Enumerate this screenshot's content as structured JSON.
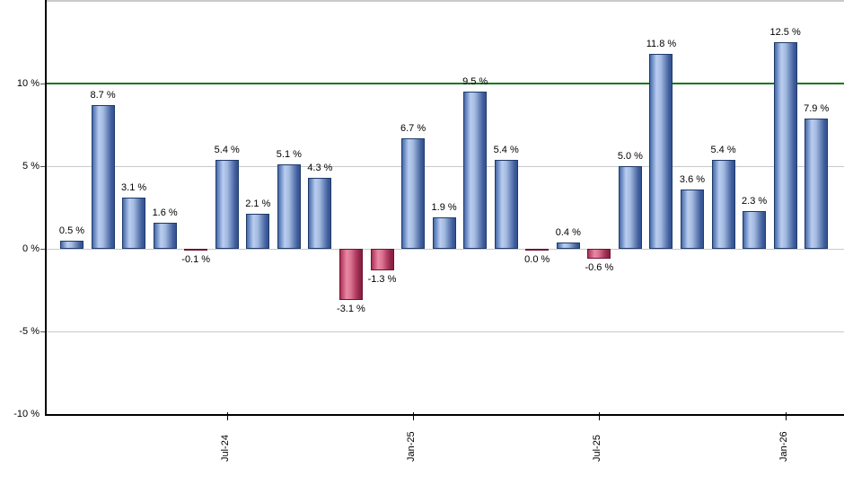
{
  "chart_data": {
    "type": "bar",
    "title": "",
    "xlabel": "",
    "ylabel": "",
    "ylim": [
      -10,
      15
    ],
    "grid": true,
    "legend": false,
    "values": [
      0.5,
      8.7,
      3.1,
      1.6,
      -0.1,
      5.4,
      2.1,
      5.1,
      4.3,
      -3.1,
      -1.3,
      6.7,
      1.9,
      9.5,
      5.4,
      0.0,
      0.4,
      -0.6,
      5.0,
      11.8,
      3.6,
      5.4,
      2.3,
      12.5,
      7.9
    ],
    "bar_labels": [
      "0.5 %",
      "8.7 %",
      "3.1 %",
      "1.6 %",
      "-0.1 %",
      "5.4 %",
      "2.1 %",
      "5.1 %",
      "4.3 %",
      "-3.1 %",
      "-1.3 %",
      "6.7 %",
      "1.9 %",
      "9.5 %",
      "5.4 %",
      "0.0 %",
      "0.4 %",
      "-0.6 %",
      "5.0 %",
      "11.8 %",
      "3.6 %",
      "5.4 %",
      "2.3 %",
      "12.5 %",
      "7.9 %"
    ],
    "x_axis_ticks": [
      {
        "label": "Jul-24",
        "bar_index": 5
      },
      {
        "label": "Jan-25",
        "bar_index": 11
      },
      {
        "label": "Jul-25",
        "bar_index": 17
      },
      {
        "label": "Jan-26",
        "bar_index": 23
      }
    ],
    "y_axis_ticks": [
      {
        "label": "10 %",
        "value": 10
      },
      {
        "label": "5 %",
        "value": 5
      },
      {
        "label": "0 %",
        "value": 0
      },
      {
        "label": "-5 %",
        "value": -5
      },
      {
        "label": "-10 %",
        "value": -10
      }
    ],
    "reference_line": {
      "value": 10,
      "color": "#137813"
    },
    "colors": {
      "positive_bar": "#6d88bd",
      "positive_bar_highlight": "#b9cdf1",
      "positive_bar_edge": "#1e3a69",
      "negative_bar": "#b44266",
      "negative_bar_highlight": "#e989a5",
      "negative_bar_edge": "#6f1230",
      "gridline": "#c9c9c9",
      "axis": "#000000",
      "background": "#ffffff"
    }
  }
}
